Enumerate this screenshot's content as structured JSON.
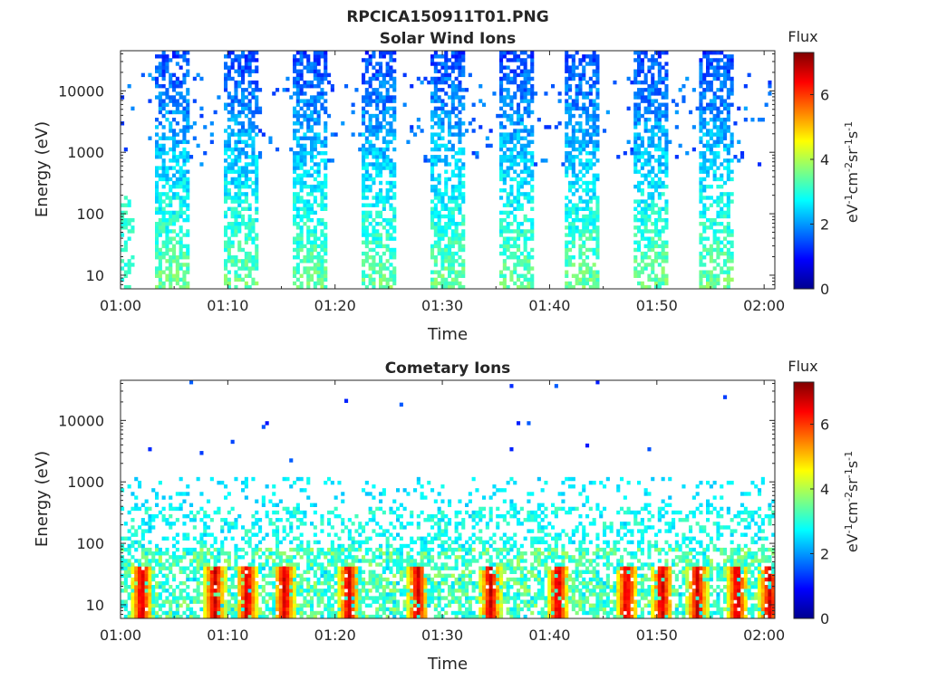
{
  "figure_title": "RPCICA150911T01.PNG",
  "chart_data": [
    {
      "type": "heatmap",
      "title": "Solar Wind Ions",
      "xlabel": "Time",
      "ylabel": "Energy (eV)",
      "x_range": [
        "01:00",
        "02:01"
      ],
      "ylim": [
        6,
        45000
      ],
      "yscale": "log",
      "x_tick_labels": [
        "01:00",
        "01:10",
        "01:20",
        "01:30",
        "01:40",
        "01:50",
        "02:00"
      ],
      "y_tick_labels": [
        "10",
        "100",
        "1000",
        "10000"
      ],
      "colorbar": {
        "title": "Flux",
        "label": "eV-1cm-2sr-1s-1",
        "range": [
          0,
          7.3
        ],
        "tick_labels": [
          "0",
          "2",
          "4",
          "6"
        ],
        "colormap": "jet"
      },
      "bursts_minutes": [
        4.9,
        11.3,
        17.8,
        24.1,
        30.4,
        36.8,
        43.1,
        49.4,
        55.6
      ],
      "burst_width_minutes": 3.2
    },
    {
      "type": "heatmap",
      "title": "Cometary Ions",
      "xlabel": "Time",
      "ylabel": "Energy (eV)",
      "x_range": [
        "01:00",
        "02:01"
      ],
      "ylim": [
        6,
        45000
      ],
      "yscale": "log",
      "x_tick_labels": [
        "01:00",
        "01:10",
        "01:20",
        "01:30",
        "01:40",
        "01:50",
        "02:00"
      ],
      "y_tick_labels": [
        "10",
        "100",
        "1000",
        "10000"
      ],
      "colorbar": {
        "title": "Flux",
        "label": "eV-1cm-2sr-1s-1",
        "range": [
          0,
          7.3
        ],
        "tick_labels": [
          "0",
          "2",
          "4",
          "6"
        ],
        "colormap": "jet"
      },
      "peaks_minutes": [
        2.0,
        8.8,
        11.8,
        15.3,
        21.3,
        27.7,
        34.5,
        40.8,
        47.2,
        50.5,
        53.8,
        57.5,
        60.5
      ]
    }
  ]
}
